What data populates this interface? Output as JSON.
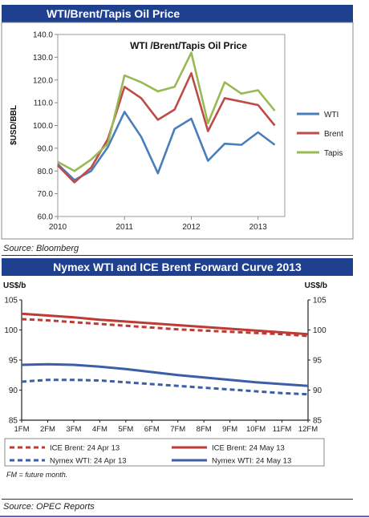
{
  "banner1": "WTI/Brent/Tapis Oil Price",
  "banner2": "Nymex WTI and ICE Brent Forward Curve 2013",
  "source1": "Source:  Bloomberg",
  "source2": "Source: OPEC Reports",
  "footnote": "FM = future month.",
  "chart_data": [
    {
      "type": "line",
      "title": "WTI /Brent/Tapis Oil Price",
      "ylabel": "$USD/BBL",
      "xlabel": "",
      "ylim": [
        60,
        140
      ],
      "yticks": [
        "60.0",
        "70.0",
        "80.0",
        "90.0",
        "100.0",
        "110.0",
        "120.0",
        "130.0",
        "140.0"
      ],
      "xticks": [
        "2010",
        "2011",
        "2012",
        "2013"
      ],
      "grid": false,
      "legend": "right",
      "x": [
        2010.0,
        2010.25,
        2010.5,
        2010.75,
        2011.0,
        2011.25,
        2011.5,
        2011.75,
        2012.0,
        2012.25,
        2012.5,
        2012.75,
        2013.0,
        2013.25
      ],
      "series": [
        {
          "name": "WTI",
          "color": "#4a7ebb",
          "values": [
            83.0,
            76.0,
            80.0,
            90.5,
            106.0,
            95.0,
            79.0,
            98.5,
            103.0,
            84.5,
            92.0,
            91.5,
            97.0,
            91.5
          ]
        },
        {
          "name": "Brent",
          "color": "#be4b48",
          "values": [
            82.5,
            75.0,
            81.5,
            94.0,
            117.0,
            112.0,
            102.5,
            107.0,
            123.0,
            97.5,
            112.0,
            110.5,
            109.0,
            100.0
          ]
        },
        {
          "name": "Tapis",
          "color": "#98b954",
          "values": [
            84.0,
            80.0,
            85.0,
            92.0,
            122.0,
            119.0,
            115.0,
            117.0,
            132.0,
            101.0,
            119.0,
            114.0,
            115.5,
            106.5
          ]
        }
      ]
    },
    {
      "type": "line",
      "title": "",
      "ylabel": "US$/b",
      "ylabel_right": "US$/b",
      "ylim": [
        85,
        105
      ],
      "yticks": [
        "85",
        "90",
        "95",
        "100",
        "105"
      ],
      "categories": [
        "1FM",
        "2FM",
        "3FM",
        "4FM",
        "5FM",
        "6FM",
        "7FM",
        "8FM",
        "9FM",
        "10FM",
        "11FM",
        "12FM"
      ],
      "grid": false,
      "legend": "bottom",
      "series": [
        {
          "name": "ICE Brent: 24 Apr 13",
          "color": "#be3a34",
          "dash": true,
          "values": [
            101.8,
            101.6,
            101.3,
            101.0,
            100.7,
            100.4,
            100.1,
            99.9,
            99.7,
            99.5,
            99.3,
            99.0
          ]
        },
        {
          "name": "ICE Brent: 24 May 13",
          "color": "#be3a34",
          "dash": false,
          "values": [
            102.7,
            102.4,
            102.1,
            101.7,
            101.4,
            101.1,
            100.8,
            100.5,
            100.2,
            99.9,
            99.6,
            99.3
          ]
        },
        {
          "name": "Nymex WTI: 24 Apr 13",
          "color": "#3b5ea6",
          "dash": true,
          "values": [
            91.4,
            91.7,
            91.7,
            91.6,
            91.3,
            91.0,
            90.7,
            90.4,
            90.1,
            89.8,
            89.5,
            89.3
          ]
        },
        {
          "name": "Nymex WTI: 24 May 13",
          "color": "#3b5ea6",
          "dash": false,
          "values": [
            94.2,
            94.3,
            94.2,
            93.9,
            93.5,
            93.0,
            92.5,
            92.1,
            91.7,
            91.3,
            91.0,
            90.7
          ]
        }
      ]
    }
  ]
}
